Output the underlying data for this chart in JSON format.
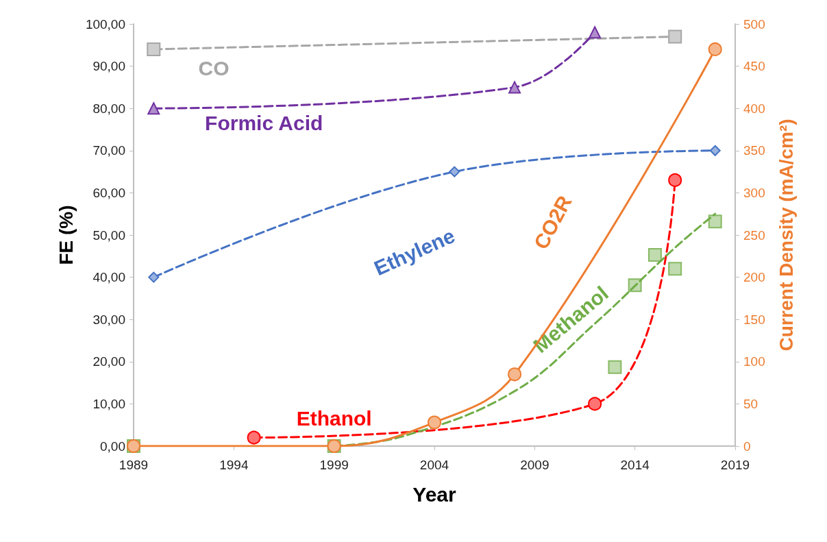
{
  "chart_data": {
    "type": "line",
    "xlabel": "Year",
    "ylabel": "FE (%)",
    "y2label": "Current Density (mA/cm²)",
    "xlim": [
      1989,
      2019
    ],
    "xticks": [
      1989,
      1994,
      1999,
      2004,
      2009,
      2014,
      2019
    ],
    "ylim": [
      0,
      100
    ],
    "yticks": [
      {
        "value": 0,
        "label": "0,00"
      },
      {
        "value": 10,
        "label": "10,00"
      },
      {
        "value": 20,
        "label": "20,00"
      },
      {
        "value": 30,
        "label": "30,00"
      },
      {
        "value": 40,
        "label": "40,00"
      },
      {
        "value": 50,
        "label": "50,00"
      },
      {
        "value": 60,
        "label": "60,00"
      },
      {
        "value": 70,
        "label": "70,00"
      },
      {
        "value": 80,
        "label": "80,00"
      },
      {
        "value": 90,
        "label": "90,00"
      },
      {
        "value": 100,
        "label": "100,00"
      }
    ],
    "y2lim": [
      0,
      500
    ],
    "y2ticks": [
      0,
      50,
      100,
      150,
      200,
      250,
      300,
      350,
      400,
      450,
      500
    ],
    "grid": false,
    "legend": false,
    "series": [
      {
        "name": "CO",
        "color": "#a6a6a6",
        "marker": "square",
        "line_style": "dashed",
        "x": [
          1990,
          2016
        ],
        "values": [
          94,
          97
        ]
      },
      {
        "name": "Formic Acid",
        "color": "#7030a0",
        "marker": "triangle",
        "line_style": "dashed",
        "x": [
          1990,
          2008,
          2012
        ],
        "values": [
          80,
          85,
          98
        ]
      },
      {
        "name": "Ethylene",
        "color": "#4472c4",
        "marker": "diamond",
        "line_style": "dashed",
        "x": [
          1990,
          2005,
          2018
        ],
        "values": [
          40,
          65,
          70
        ]
      },
      {
        "name": "Ethanol",
        "color": "#ff0000",
        "marker": "circle",
        "line_style": "dashed",
        "x": [
          1995,
          2012,
          2016
        ],
        "values": [
          2,
          10,
          63
        ]
      },
      {
        "name": "Methanol",
        "type": "scatter",
        "color": "#70ad47",
        "marker": "square",
        "x": [
          1989,
          1999,
          2013,
          2014,
          2015,
          2016,
          2018
        ],
        "values": [
          0,
          0,
          18.7,
          38.1,
          45.3,
          42,
          53.2
        ]
      },
      {
        "color": "#70ad47",
        "marker": "none",
        "line_style": "dashed",
        "x": [
          1999,
          2002.5,
          2008,
          2012,
          2016,
          2018
        ],
        "values": [
          0,
          2.4,
          13,
          29,
          47,
          55
        ]
      },
      {
        "name": "CO2R",
        "axis": "y2",
        "color": "#ed7d31",
        "marker": "circle",
        "line_style": "solid",
        "x": [
          1989,
          1999,
          2004,
          2008,
          2018
        ],
        "values": [
          0,
          0,
          28,
          85,
          470
        ]
      }
    ]
  }
}
